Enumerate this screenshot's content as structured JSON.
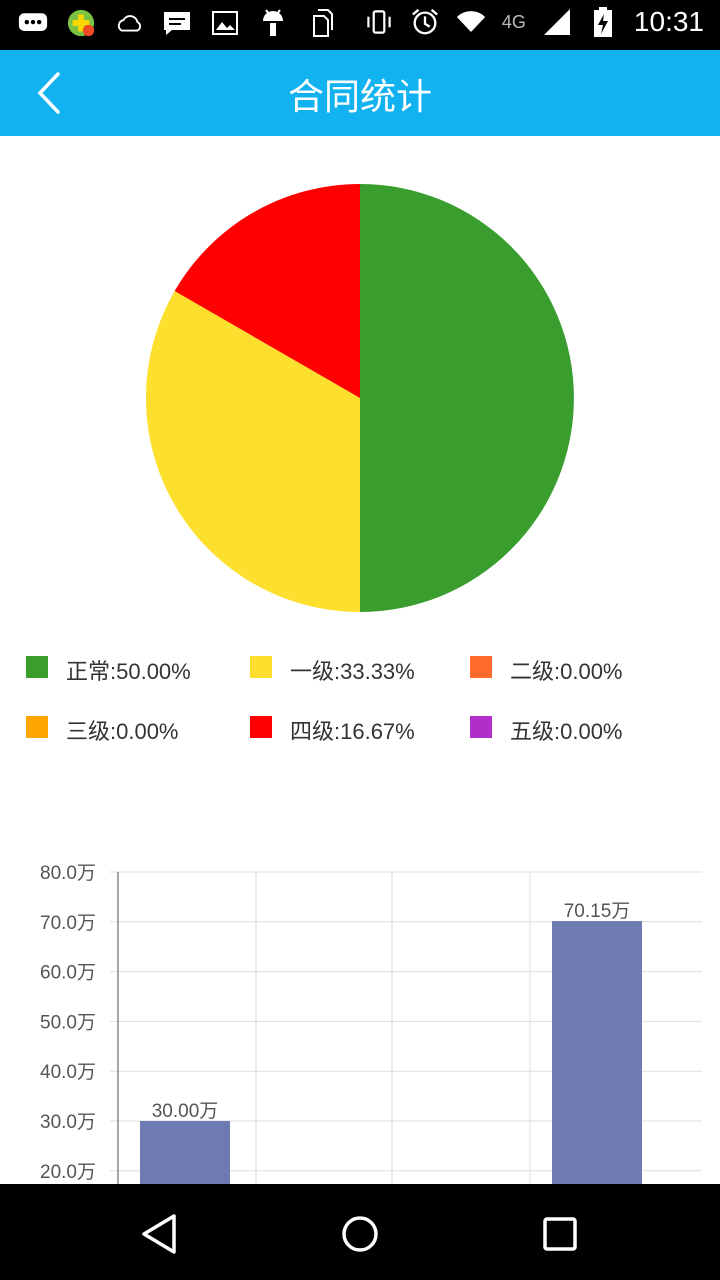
{
  "status_bar": {
    "time": "10:31",
    "network": "4G",
    "icons": [
      "messages-icon",
      "app-store-icon",
      "weather-icon",
      "chat-icon",
      "image-icon",
      "android-icon",
      "sim-icon",
      "vibrate-icon",
      "alarm-icon",
      "wifi-icon",
      "signal-icon",
      "battery-icon"
    ]
  },
  "app_bar": {
    "title": "合同统计",
    "back_icon": "chevron-left-icon"
  },
  "pie_legend": [
    {
      "label": "正常:50.00%",
      "color": "#3a9e2f"
    },
    {
      "label": "一级:33.33%",
      "color": "#fddf2e"
    },
    {
      "label": "二级:0.00%",
      "color": "#ff6b2b"
    },
    {
      "label": "三级:0.00%",
      "color": "#ffa500"
    },
    {
      "label": "四级:16.67%",
      "color": "#ff0000"
    },
    {
      "label": "五级:0.00%",
      "color": "#b22ecb"
    }
  ],
  "chart_data": [
    {
      "type": "pie",
      "slices": [
        {
          "label": "正常",
          "value": 50.0,
          "color": "#3a9e2f"
        },
        {
          "label": "一级",
          "value": 33.33,
          "color": "#fddf2e"
        },
        {
          "label": "二级",
          "value": 0.0,
          "color": "#ff6b2b"
        },
        {
          "label": "三级",
          "value": 0.0,
          "color": "#ffa500"
        },
        {
          "label": "四级",
          "value": 16.67,
          "color": "#ff0000"
        },
        {
          "label": "五级",
          "value": 0.0,
          "color": "#b22ecb"
        }
      ]
    },
    {
      "type": "bar",
      "categories": [
        "",
        "",
        ""
      ],
      "values": [
        30.0,
        null,
        70.15
      ],
      "value_labels": [
        "30.00万",
        "",
        "70.15万"
      ],
      "ytick_labels": [
        "80.0万",
        "70.0万",
        "60.0万",
        "50.0万",
        "40.0万",
        "30.0万",
        "20.0万"
      ],
      "ytick_values": [
        80,
        70,
        60,
        50,
        40,
        30,
        20
      ],
      "ylim": [
        20,
        80
      ],
      "bar_color": "#6e7ab2",
      "grid": true
    }
  ],
  "nav_bar": {
    "back_icon": "triangle-back-icon",
    "home_icon": "circle-home-icon",
    "recents_icon": "square-recents-icon"
  }
}
